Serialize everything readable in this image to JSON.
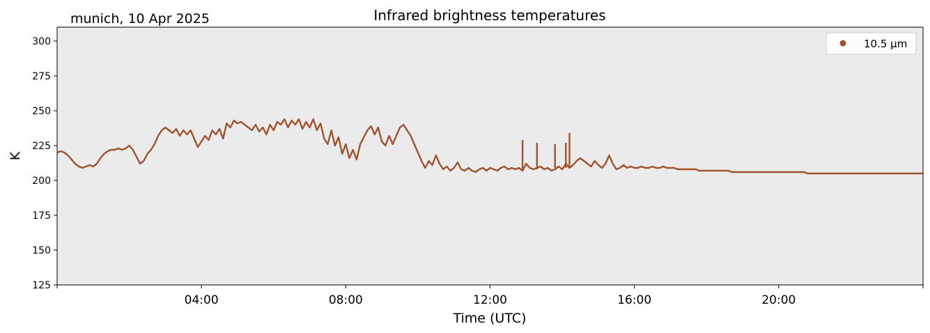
{
  "header": {
    "location_date": "munich, 10 Apr 2025"
  },
  "chart_data": {
    "type": "line",
    "title": "Infrared brightness temperatures",
    "xlabel": "Time (UTC)",
    "ylabel": "K",
    "xlim_hours": [
      0,
      24
    ],
    "ylim": [
      125,
      310
    ],
    "x_ticks": [
      {
        "hour": 4,
        "label": "04:00"
      },
      {
        "hour": 8,
        "label": "08:00"
      },
      {
        "hour": 12,
        "label": "12:00"
      },
      {
        "hour": 16,
        "label": "16:00"
      },
      {
        "hour": 20,
        "label": "20:00"
      }
    ],
    "y_ticks": [
      125,
      150,
      175,
      200,
      225,
      250,
      275,
      300
    ],
    "grid": false,
    "background_color": "#ebebeb",
    "legend": {
      "position": "top-right",
      "entries": [
        "10.5 µm"
      ]
    },
    "series": [
      {
        "name": "10.5 µm",
        "color": "#a0522d",
        "points": [
          [
            0.0,
            220
          ],
          [
            0.1,
            221
          ],
          [
            0.2,
            220
          ],
          [
            0.3,
            218
          ],
          [
            0.4,
            215
          ],
          [
            0.5,
            212
          ],
          [
            0.6,
            210
          ],
          [
            0.7,
            209
          ],
          [
            0.8,
            210
          ],
          [
            0.9,
            211
          ],
          [
            1.0,
            210
          ],
          [
            1.1,
            212
          ],
          [
            1.2,
            216
          ],
          [
            1.3,
            219
          ],
          [
            1.4,
            221
          ],
          [
            1.5,
            222
          ],
          [
            1.6,
            222
          ],
          [
            1.7,
            223
          ],
          [
            1.8,
            222
          ],
          [
            1.9,
            223
          ],
          [
            2.0,
            225
          ],
          [
            2.1,
            222
          ],
          [
            2.2,
            217
          ],
          [
            2.3,
            212
          ],
          [
            2.4,
            214
          ],
          [
            2.5,
            219
          ],
          [
            2.6,
            222
          ],
          [
            2.7,
            226
          ],
          [
            2.8,
            232
          ],
          [
            2.9,
            236
          ],
          [
            3.0,
            238
          ],
          [
            3.1,
            236
          ],
          [
            3.2,
            234
          ],
          [
            3.3,
            237
          ],
          [
            3.4,
            232
          ],
          [
            3.5,
            236
          ],
          [
            3.6,
            233
          ],
          [
            3.7,
            236
          ],
          [
            3.8,
            230
          ],
          [
            3.9,
            224
          ],
          [
            4.0,
            228
          ],
          [
            4.1,
            232
          ],
          [
            4.2,
            229
          ],
          [
            4.3,
            236
          ],
          [
            4.4,
            233
          ],
          [
            4.5,
            237
          ],
          [
            4.6,
            230
          ],
          [
            4.7,
            241
          ],
          [
            4.8,
            238
          ],
          [
            4.9,
            243
          ],
          [
            5.0,
            241
          ],
          [
            5.1,
            242
          ],
          [
            5.2,
            240
          ],
          [
            5.3,
            238
          ],
          [
            5.4,
            236
          ],
          [
            5.5,
            240
          ],
          [
            5.6,
            235
          ],
          [
            5.7,
            238
          ],
          [
            5.8,
            233
          ],
          [
            5.9,
            240
          ],
          [
            6.0,
            236
          ],
          [
            6.1,
            242
          ],
          [
            6.2,
            240
          ],
          [
            6.3,
            244
          ],
          [
            6.4,
            238
          ],
          [
            6.5,
            243
          ],
          [
            6.6,
            240
          ],
          [
            6.7,
            244
          ],
          [
            6.8,
            237
          ],
          [
            6.9,
            242
          ],
          [
            7.0,
            238
          ],
          [
            7.1,
            244
          ],
          [
            7.2,
            236
          ],
          [
            7.3,
            241
          ],
          [
            7.4,
            230
          ],
          [
            7.5,
            226
          ],
          [
            7.6,
            236
          ],
          [
            7.7,
            225
          ],
          [
            7.8,
            231
          ],
          [
            7.9,
            219
          ],
          [
            8.0,
            226
          ],
          [
            8.1,
            216
          ],
          [
            8.2,
            222
          ],
          [
            8.3,
            215
          ],
          [
            8.4,
            226
          ],
          [
            8.5,
            231
          ],
          [
            8.6,
            236
          ],
          [
            8.7,
            239
          ],
          [
            8.8,
            233
          ],
          [
            8.9,
            238
          ],
          [
            9.0,
            228
          ],
          [
            9.1,
            225
          ],
          [
            9.2,
            232
          ],
          [
            9.3,
            226
          ],
          [
            9.4,
            232
          ],
          [
            9.5,
            238
          ],
          [
            9.6,
            240
          ],
          [
            9.7,
            236
          ],
          [
            9.8,
            232
          ],
          [
            9.9,
            226
          ],
          [
            10.0,
            220
          ],
          [
            10.1,
            214
          ],
          [
            10.2,
            209
          ],
          [
            10.3,
            214
          ],
          [
            10.4,
            211
          ],
          [
            10.5,
            218
          ],
          [
            10.6,
            212
          ],
          [
            10.7,
            208
          ],
          [
            10.8,
            210
          ],
          [
            10.9,
            207
          ],
          [
            11.0,
            209
          ],
          [
            11.1,
            213
          ],
          [
            11.2,
            208
          ],
          [
            11.3,
            207
          ],
          [
            11.4,
            209
          ],
          [
            11.5,
            207
          ],
          [
            11.6,
            206
          ],
          [
            11.7,
            208
          ],
          [
            11.8,
            209
          ],
          [
            11.9,
            207
          ],
          [
            12.0,
            209
          ],
          [
            12.1,
            208
          ],
          [
            12.2,
            207
          ],
          [
            12.3,
            209
          ],
          [
            12.4,
            210
          ],
          [
            12.5,
            208
          ],
          [
            12.6,
            209
          ],
          [
            12.7,
            208
          ],
          [
            12.8,
            209
          ],
          [
            12.9,
            207
          ],
          [
            13.0,
            212
          ],
          [
            13.1,
            209
          ],
          [
            13.2,
            208
          ],
          [
            13.3,
            209
          ],
          [
            13.4,
            210
          ],
          [
            13.5,
            208
          ],
          [
            13.6,
            209
          ],
          [
            13.7,
            207
          ],
          [
            13.8,
            208
          ],
          [
            13.9,
            210
          ],
          [
            14.0,
            208
          ],
          [
            14.1,
            212
          ],
          [
            14.2,
            209
          ],
          [
            14.3,
            211
          ],
          [
            14.4,
            214
          ],
          [
            14.5,
            216
          ],
          [
            14.6,
            214
          ],
          [
            14.7,
            212
          ],
          [
            14.8,
            210
          ],
          [
            14.9,
            214
          ],
          [
            15.0,
            211
          ],
          [
            15.1,
            209
          ],
          [
            15.2,
            212
          ],
          [
            15.3,
            218
          ],
          [
            15.4,
            212
          ],
          [
            15.5,
            208
          ],
          [
            15.6,
            209
          ],
          [
            15.7,
            211
          ],
          [
            15.8,
            209
          ],
          [
            15.9,
            210
          ],
          [
            16.0,
            209
          ],
          [
            16.1,
            209
          ],
          [
            16.2,
            210
          ],
          [
            16.3,
            209
          ],
          [
            16.4,
            209
          ],
          [
            16.5,
            210
          ],
          [
            16.6,
            209
          ],
          [
            16.7,
            209
          ],
          [
            16.8,
            210
          ],
          [
            16.9,
            209
          ],
          [
            17.0,
            209
          ],
          [
            17.1,
            209
          ],
          [
            17.2,
            208
          ],
          [
            17.3,
            208
          ],
          [
            17.4,
            208
          ],
          [
            17.5,
            208
          ],
          [
            17.6,
            208
          ],
          [
            17.7,
            208
          ],
          [
            17.8,
            207
          ],
          [
            17.9,
            207
          ],
          [
            18.0,
            207
          ],
          [
            18.1,
            207
          ],
          [
            18.2,
            207
          ],
          [
            18.3,
            207
          ],
          [
            18.4,
            207
          ],
          [
            18.5,
            207
          ],
          [
            18.6,
            207
          ],
          [
            18.7,
            206
          ],
          [
            18.8,
            206
          ],
          [
            18.9,
            206
          ],
          [
            19.0,
            206
          ],
          [
            19.1,
            206
          ],
          [
            19.2,
            206
          ],
          [
            19.3,
            206
          ],
          [
            19.4,
            206
          ],
          [
            19.5,
            206
          ],
          [
            19.6,
            206
          ],
          [
            19.7,
            206
          ],
          [
            19.8,
            206
          ],
          [
            19.9,
            206
          ],
          [
            20.0,
            206
          ],
          [
            20.1,
            206
          ],
          [
            20.2,
            206
          ],
          [
            20.3,
            206
          ],
          [
            20.4,
            206
          ],
          [
            20.5,
            206
          ],
          [
            20.6,
            206
          ],
          [
            20.7,
            206
          ],
          [
            20.8,
            205
          ],
          [
            20.9,
            205
          ],
          [
            21.0,
            205
          ],
          [
            21.1,
            205
          ],
          [
            21.2,
            205
          ],
          [
            21.3,
            205
          ],
          [
            21.4,
            205
          ],
          [
            21.5,
            205
          ],
          [
            21.6,
            205
          ],
          [
            21.7,
            205
          ],
          [
            21.8,
            205
          ],
          [
            21.9,
            205
          ],
          [
            22.0,
            205
          ],
          [
            22.1,
            205
          ],
          [
            22.2,
            205
          ],
          [
            22.3,
            205
          ],
          [
            22.4,
            205
          ],
          [
            22.5,
            205
          ],
          [
            22.6,
            205
          ],
          [
            22.7,
            205
          ],
          [
            22.8,
            205
          ],
          [
            22.9,
            205
          ],
          [
            23.0,
            205
          ],
          [
            23.1,
            205
          ],
          [
            23.2,
            205
          ],
          [
            23.3,
            205
          ],
          [
            23.4,
            205
          ],
          [
            23.5,
            205
          ],
          [
            23.6,
            205
          ],
          [
            23.7,
            205
          ],
          [
            23.8,
            205
          ],
          [
            23.9,
            205
          ],
          [
            24.0,
            205
          ]
        ]
      }
    ],
    "spikes": [
      {
        "hour": 12.9,
        "low": 207,
        "high": 229
      },
      {
        "hour": 13.3,
        "low": 208,
        "high": 227
      },
      {
        "hour": 13.8,
        "low": 209,
        "high": 226
      },
      {
        "hour": 14.1,
        "low": 209,
        "high": 227
      },
      {
        "hour": 14.2,
        "low": 210,
        "high": 234
      }
    ]
  }
}
